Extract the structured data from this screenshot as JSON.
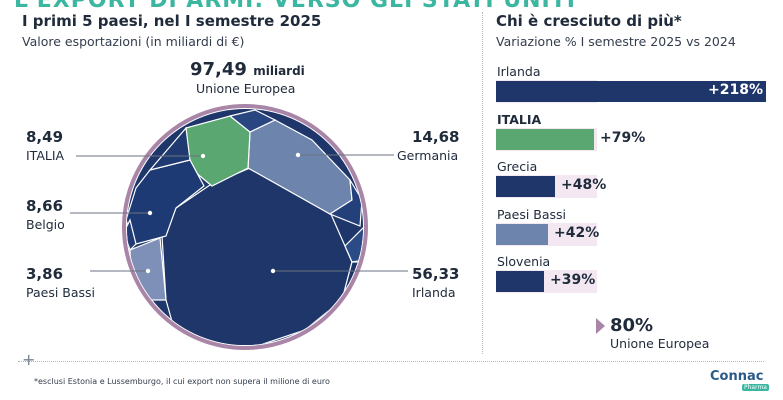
{
  "header": {
    "top_title": "L'EXPORT DI ARMI: VERSO GLI STATI UNITI"
  },
  "left_panel": {
    "title": "I primi 5 paesi, nel I semestre 2025",
    "subtitle": "Valore esportazioni (in miliardi di €)"
  },
  "right_panel": {
    "title": "Chi è cresciuto di più*",
    "subtitle": "Variazione % I semestre 2025 vs 2024"
  },
  "footnote": "*esclusi Estonia e Lussemburgo, il cui export non supera il milione di euro",
  "brand": {
    "name": "Connac",
    "sub": "Pharma"
  },
  "colors": {
    "dark_navy": "#1e3669",
    "medium_blue": "#6d84ad",
    "green": "#5aa771",
    "light_slate": "#7f90b8",
    "circle_ring": "#a985a7",
    "bar_bg": "#f3e8f1"
  },
  "chart_data": [
    {
      "type": "pie",
      "title": "I primi 5 paesi, nel I semestre 2025",
      "subtitle": "Valore esportazioni (in miliardi di €)",
      "total": {
        "label": "Unione Europea",
        "value": 97.49,
        "value_text": "97,49",
        "unit": "miliardi"
      },
      "slices": [
        {
          "name": "Irlanda",
          "value": 56.33,
          "value_text": "56,33"
        },
        {
          "name": "Germania",
          "value": 14.68,
          "value_text": "14,68"
        },
        {
          "name": "Belgio",
          "value": 8.66,
          "value_text": "8,66"
        },
        {
          "name": "ITALIA",
          "value": 8.49,
          "value_text": "8,49"
        },
        {
          "name": "Paesi Bassi",
          "value": 3.86,
          "value_text": "3,86"
        }
      ]
    },
    {
      "type": "bar",
      "orientation": "horizontal",
      "title": "Chi è cresciuto di più*",
      "subtitle": "Variazione % I semestre 2025 vs 2024",
      "categories": [
        "Irlanda",
        "ITALIA",
        "Grecia",
        "Paesi Bassi",
        "Slovenia"
      ],
      "values": [
        218,
        79,
        48,
        42,
        39
      ],
      "value_labels": [
        "+218%",
        "+79%",
        "+48%",
        "+42%",
        "+39%"
      ],
      "reference": {
        "label": "Unione Europea",
        "value": 80,
        "value_text": "80%"
      }
    }
  ]
}
